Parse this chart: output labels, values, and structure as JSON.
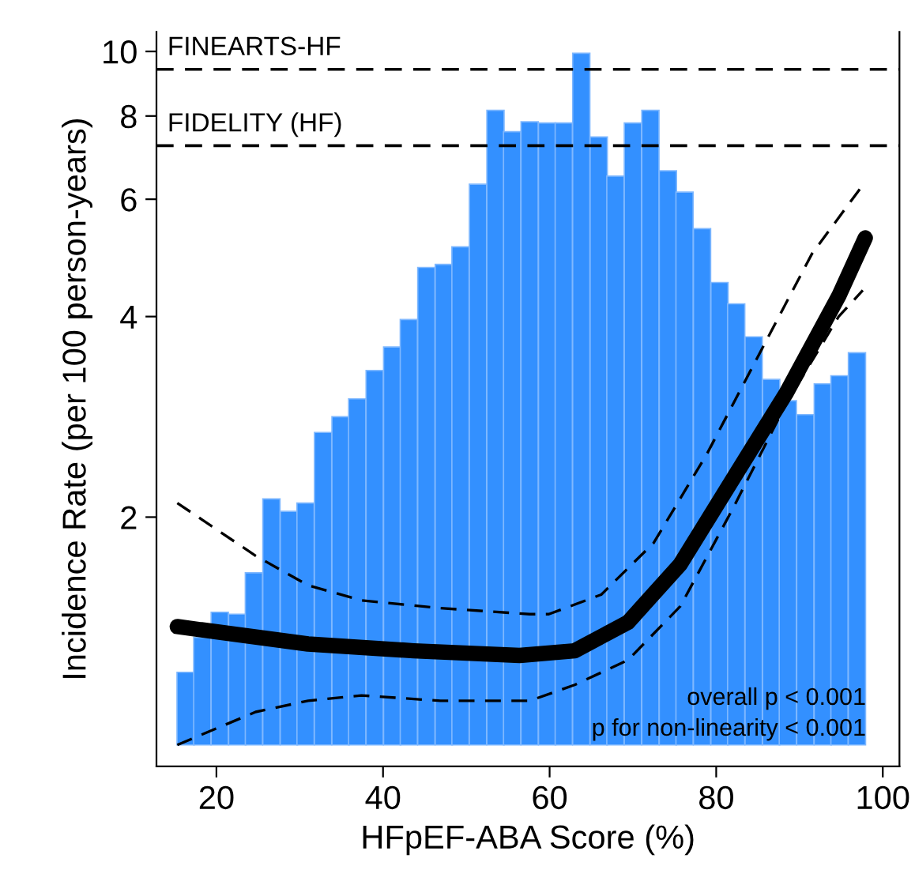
{
  "chart_data": {
    "type": "line",
    "xlabel": "HFpEF-ABA Score (%)",
    "ylabel": "Incidence Rate (per 100 person-years)",
    "log": "y",
    "xlim": [
      12.8,
      102
    ],
    "xticks": [
      20,
      40,
      60,
      80,
      100
    ],
    "ylim": [
      0.845,
      10.7
    ],
    "yticks": [
      2,
      4,
      6,
      8,
      10
    ],
    "grid": false,
    "legend": false,
    "series": [
      {
        "type": "bar",
        "color": "#3390ff",
        "x": [
          16.3,
          18.3,
          20.4,
          22.5,
          24.5,
          26.6,
          28.7,
          30.7,
          32.8,
          34.9,
          36.9,
          39.0,
          41.1,
          43.1,
          45.2,
          47.3,
          49.3,
          51.4,
          53.5,
          55.5,
          57.6,
          59.7,
          61.7,
          63.8,
          65.9,
          67.9,
          70.0,
          72.1,
          74.2,
          76.2,
          78.3,
          80.4,
          82.4,
          84.5,
          86.6,
          88.6,
          90.7,
          92.8,
          94.8,
          96.9
        ],
        "base": [
          0.91,
          0.91,
          0.91,
          0.91,
          0.91,
          0.91,
          0.91,
          0.91,
          0.91,
          0.91,
          0.91,
          0.91,
          0.91,
          0.91,
          0.91,
          0.91,
          0.91,
          0.91,
          0.91,
          0.91,
          0.91,
          0.91,
          0.91,
          0.91,
          0.91,
          0.91,
          0.91,
          0.91,
          0.91,
          0.91,
          0.91,
          0.91,
          0.91,
          0.91,
          0.91,
          0.91,
          0.91,
          0.91,
          0.91,
          0.91
        ],
        "values": [
          0.26,
          0.41,
          0.53,
          0.52,
          0.74,
          1.22,
          1.13,
          1.19,
          1.77,
          1.92,
          2.1,
          2.41,
          2.69,
          3.05,
          3.83,
          3.88,
          4.18,
          5.41,
          7.25,
          6.67,
          6.93,
          6.9,
          6.9,
          9.03,
          6.53,
          5.59,
          6.9,
          7.25,
          5.71,
          5.24,
          4.51,
          3.59,
          3.27,
          2.82,
          2.31,
          2.08,
          1.94,
          2.26,
          2.35,
          2.62
        ]
      },
      {
        "type": "line",
        "color": "#000000",
        "line_style": "dashed",
        "x": [
          15.3,
          24.7,
          31.0,
          37.4,
          46.9,
          57.6,
          59.9,
          66.2,
          72.5,
          78.9,
          85.2,
          91.5,
          97.6
        ],
        "values": [
          2.1,
          1.75,
          1.58,
          1.5,
          1.46,
          1.43,
          1.43,
          1.53,
          1.83,
          2.49,
          3.52,
          4.97,
          6.3
        ]
      },
      {
        "type": "line",
        "color": "#000000",
        "line_style": "dashed",
        "x": [
          15.3,
          24.7,
          31.0,
          37.4,
          46.9,
          57.6,
          63.0,
          69.4,
          75.7,
          82.0,
          88.4,
          94.7,
          97.6
        ],
        "values": [
          0.91,
          1.02,
          1.06,
          1.08,
          1.06,
          1.06,
          1.12,
          1.22,
          1.47,
          2.06,
          2.96,
          4.0,
          4.38
        ]
      },
      {
        "color": "#000000",
        "line_style": "solid",
        "x": [
          15.3,
          31.0,
          43.7,
          56.4,
          63.0,
          69.4,
          75.7,
          82.0,
          88.4,
          94.7,
          97.9
        ],
        "values": [
          1.37,
          1.29,
          1.26,
          1.24,
          1.26,
          1.39,
          1.7,
          2.28,
          3.07,
          4.29,
          5.25
        ]
      }
    ],
    "ref_lines": [
      {
        "axis": "y",
        "value": 9.4,
        "label": "FINEARTS-HF",
        "color": "#000000",
        "line_style": "dashed"
      },
      {
        "axis": "y",
        "value": 7.22,
        "label": "FIDELITY (HF)",
        "color": "#000000",
        "line_style": "dashed"
      }
    ],
    "annotations": [
      "overall p < 0.001",
      "p for non-linearity < 0.001"
    ]
  }
}
